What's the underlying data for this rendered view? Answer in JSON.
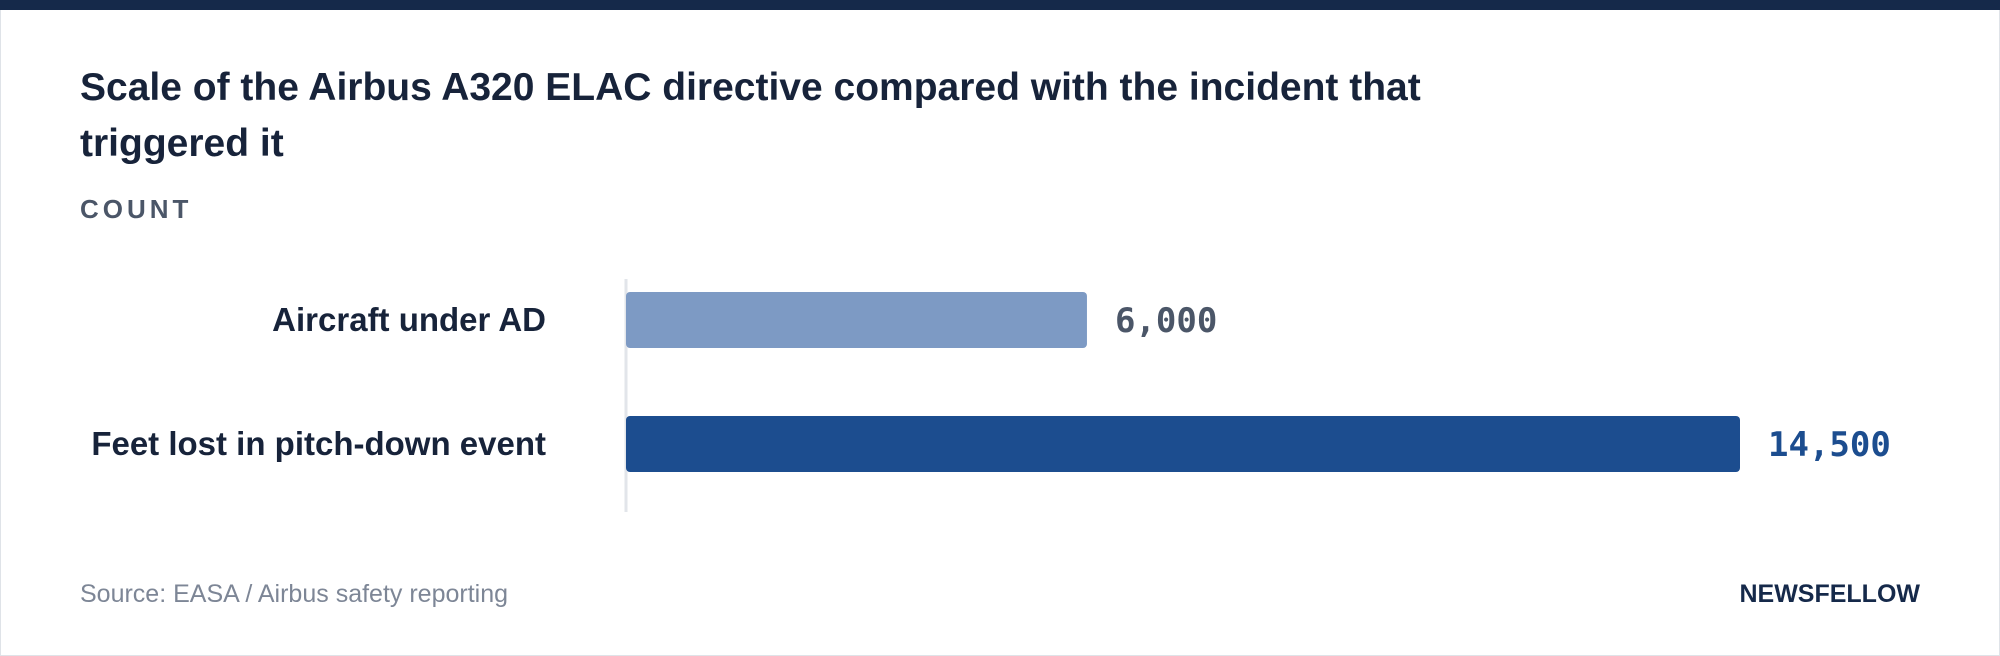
{
  "header": {
    "title": "Scale of the Airbus A320 ELAC directive compared with the incident that triggered it",
    "unit_label": "COUNT"
  },
  "footer": {
    "source": "Source: EASA / Airbus safety reporting",
    "brand": "NEWSFELLOW"
  },
  "colors": {
    "accent_bar": "#15294a",
    "series_light": "#7d9ac4",
    "series_dark": "#1c4d8f",
    "value_light_text": "#4b5668",
    "value_dark_text": "#1c4d8f"
  },
  "chart_data": {
    "type": "bar",
    "orientation": "horizontal",
    "categories": [
      "Aircraft under AD",
      "Feet lost in pitch-down event"
    ],
    "values": [
      6000,
      14500
    ],
    "value_labels": [
      "6,000",
      "14,500"
    ],
    "title": "Scale of the Airbus A320 ELAC directive compared with the incident that triggered it",
    "ylabel": "COUNT",
    "xlim": [
      0,
      14500
    ],
    "grid": false,
    "legend": "none"
  }
}
